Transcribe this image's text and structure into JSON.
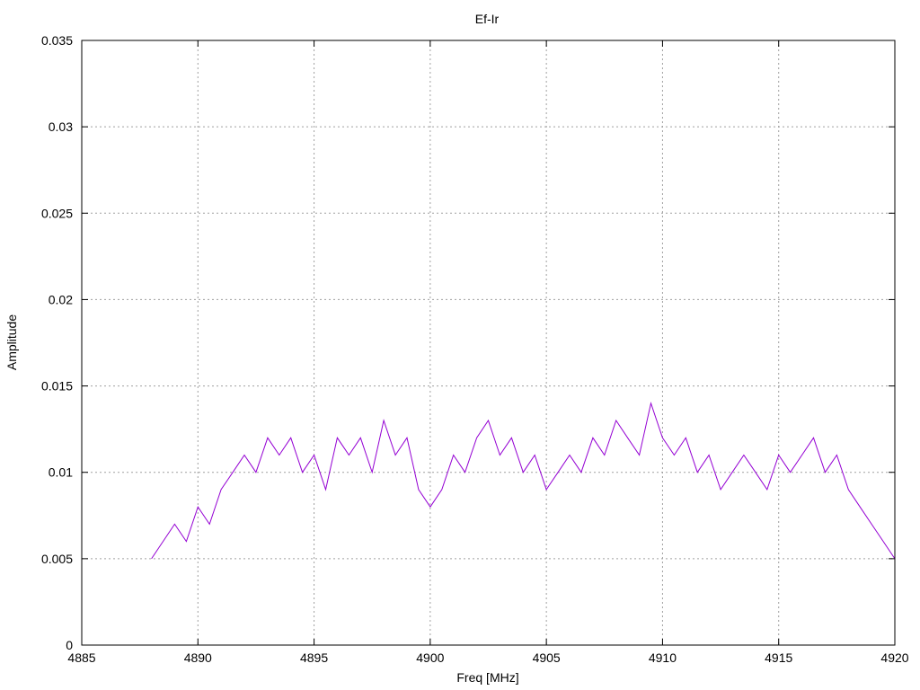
{
  "chart_data": {
    "type": "line",
    "title": "Ef-Ir",
    "xlabel": "Freq [MHz]",
    "ylabel": "Amplitude",
    "xlim": [
      4885,
      4920
    ],
    "ylim": [
      0,
      0.035
    ],
    "xticks": [
      4885,
      4890,
      4895,
      4900,
      4905,
      4910,
      4915,
      4920
    ],
    "xtick_labels": [
      "4885",
      "4890",
      "4895",
      "4900",
      "4905",
      "4910",
      "4915",
      "4920"
    ],
    "yticks": [
      0,
      0.005,
      0.01,
      0.015,
      0.02,
      0.025,
      0.03,
      0.035
    ],
    "ytick_labels": [
      "0",
      "0.005",
      "0.01",
      "0.015",
      "0.02",
      "0.025",
      "0.03",
      "0.035"
    ],
    "grid": true,
    "line_color": "#9400d3",
    "series": [
      {
        "x": [
          4888.0,
          4888.5,
          4889.0,
          4889.5,
          4890.0,
          4890.5,
          4891.0,
          4891.5,
          4892.0,
          4892.5,
          4893.0,
          4893.5,
          4894.0,
          4894.5,
          4895.0,
          4895.5,
          4896.0,
          4896.5,
          4897.0,
          4897.5,
          4898.0,
          4898.5,
          4899.0,
          4899.5,
          4900.0,
          4900.5,
          4901.0,
          4901.5,
          4902.0,
          4902.5,
          4903.0,
          4903.5,
          4904.0,
          4904.5,
          4905.0,
          4905.5,
          4906.0,
          4906.5,
          4907.0,
          4907.5,
          4908.0,
          4908.5,
          4909.0,
          4909.5,
          4910.0,
          4910.5,
          4911.0,
          4911.5,
          4912.0,
          4912.5,
          4913.0,
          4913.5,
          4914.0,
          4914.5,
          4915.0,
          4915.5,
          4916.0,
          4916.5,
          4917.0,
          4917.5,
          4918.0,
          4918.5,
          4919.0,
          4919.5,
          4920.0
        ],
        "y": [
          0.005,
          0.006,
          0.007,
          0.006,
          0.008,
          0.007,
          0.009,
          0.01,
          0.011,
          0.01,
          0.012,
          0.011,
          0.012,
          0.01,
          0.011,
          0.009,
          0.012,
          0.011,
          0.012,
          0.01,
          0.013,
          0.011,
          0.012,
          0.009,
          0.008,
          0.009,
          0.011,
          0.01,
          0.012,
          0.013,
          0.011,
          0.012,
          0.01,
          0.011,
          0.009,
          0.01,
          0.011,
          0.01,
          0.012,
          0.011,
          0.013,
          0.012,
          0.011,
          0.014,
          0.012,
          0.011,
          0.012,
          0.01,
          0.011,
          0.009,
          0.01,
          0.011,
          0.01,
          0.009,
          0.011,
          0.01,
          0.011,
          0.012,
          0.01,
          0.011,
          0.009,
          0.008,
          0.007,
          0.006,
          0.005
        ]
      }
    ]
  }
}
